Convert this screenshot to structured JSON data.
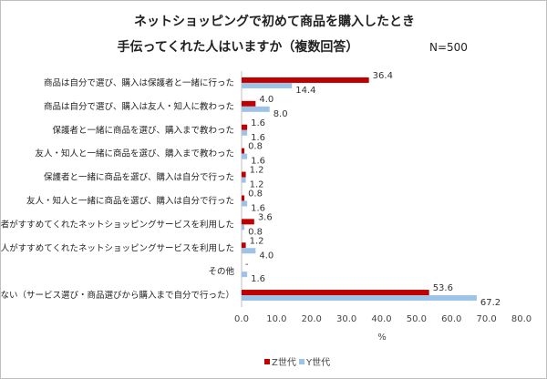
{
  "chart_data": {
    "type": "bar",
    "orientation": "horizontal",
    "title": "ネットショッピングで初めて商品を購入したとき",
    "subtitle": "手伝ってくれた人はいますか（複数回答）",
    "note": "N=500",
    "xlabel": "%",
    "xlim": [
      0,
      80
    ],
    "xticks": [
      "0.0",
      "10.0",
      "20.0",
      "30.0",
      "40.0",
      "50.0",
      "60.0",
      "70.0",
      "80.0"
    ],
    "grid": false,
    "legend": "bottom",
    "categories": [
      "商品は自分で選び、購入は保護者と一緒に行った",
      "商品は自分で選び、購入は友人・知人に教わった",
      "保護者と一緒に商品を選び、購入まで教わった",
      "友人・知人と一緒に商品を選び、購入まで教わった",
      "保護者と一緒に商品を選び、購入は自分で行った",
      "友人・知人と一緒に商品を選び、購入は自分で行った",
      "保護者がすすめてくれたネットショッピングサービスを利用した",
      "友人・知人がすすめてくれたネットショッピングサービスを利用した",
      "その他",
      "いない（サービス選び・商品選びから購入まで自分で行った）"
    ],
    "series": [
      {
        "name": "Z世代",
        "color": "#c00000",
        "values": [
          36.4,
          4.0,
          1.6,
          0.8,
          1.2,
          0.8,
          3.6,
          1.2,
          0,
          53.6
        ],
        "labels": [
          "36.4",
          "4.0",
          "1.6",
          "0.8",
          "1.2",
          "0.8",
          "3.6",
          "1.2",
          "-",
          "53.6"
        ]
      },
      {
        "name": "Y世代",
        "color": "#9dc3e6",
        "values": [
          14.4,
          8.0,
          1.6,
          1.6,
          1.2,
          1.6,
          0.8,
          4.0,
          1.6,
          67.2
        ],
        "labels": [
          "14.4",
          "8.0",
          "1.6",
          "1.6",
          "1.2",
          "1.6",
          "0.8",
          "4.0",
          "1.6",
          "67.2"
        ]
      }
    ]
  }
}
